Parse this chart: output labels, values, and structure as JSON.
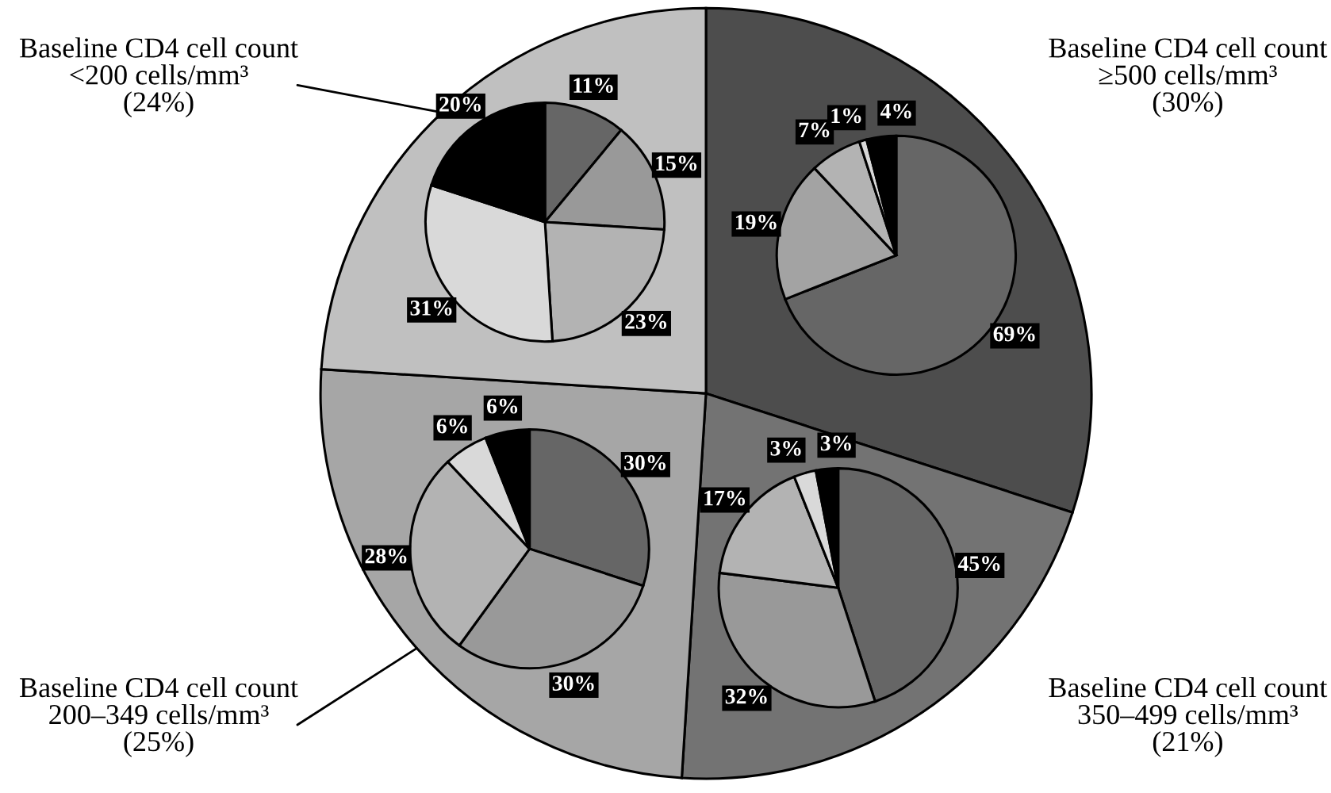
{
  "chart_data": [
    {
      "type": "pie",
      "categories": [
        "Baseline CD4 cell count\n≥500 cells/mm³",
        "Baseline CD4 cell count\n350–499 cells/mm³",
        "Baseline CD4 cell count\n200–349 cells/mm³",
        "Baseline CD4 cell count\n<200 cells/mm³"
      ],
      "values": [
        30,
        21,
        25,
        24
      ],
      "colors": [
        "#4d4d4d",
        "#737373",
        "#a6a6a6",
        "#c0c0c0"
      ],
      "value_labels": [
        "(30%)",
        "(21%)",
        "(25%)",
        "(24%)"
      ]
    },
    {
      "type": "pie",
      "categories": [
        null,
        null,
        null,
        null,
        null
      ],
      "values": [
        69,
        19,
        7,
        1,
        4
      ],
      "colors": [
        "#666666",
        "#a3a3a3",
        "#b3b3b3",
        "#d9d9d9",
        "#000000"
      ],
      "value_labels": [
        "69%",
        "19%",
        "7%",
        "1%",
        "4%"
      ]
    },
    {
      "type": "pie",
      "categories": [
        null,
        null,
        null,
        null,
        null
      ],
      "values": [
        45,
        32,
        17,
        3,
        3
      ],
      "colors": [
        "#666666",
        "#999999",
        "#b3b3b3",
        "#d9d9d9",
        "#000000"
      ],
      "value_labels": [
        "45%",
        "32%",
        "17%",
        "3%",
        "3%"
      ]
    },
    {
      "type": "pie",
      "categories": [
        null,
        null,
        null,
        null,
        null
      ],
      "values": [
        30,
        30,
        28,
        6,
        6
      ],
      "colors": [
        "#666666",
        "#999999",
        "#b3b3b3",
        "#d9d9d9",
        "#000000"
      ],
      "value_labels": [
        "30%",
        "30%",
        "28%",
        "6%",
        "6%"
      ]
    },
    {
      "type": "pie",
      "categories": [
        null,
        null,
        null,
        null,
        null
      ],
      "values": [
        11,
        15,
        23,
        31,
        20
      ],
      "colors": [
        "#666666",
        "#999999",
        "#b3b3b3",
        "#d9d9d9",
        "#000000"
      ],
      "value_labels": [
        "11%",
        "15%",
        "23%",
        "31%",
        "20%"
      ]
    }
  ]
}
